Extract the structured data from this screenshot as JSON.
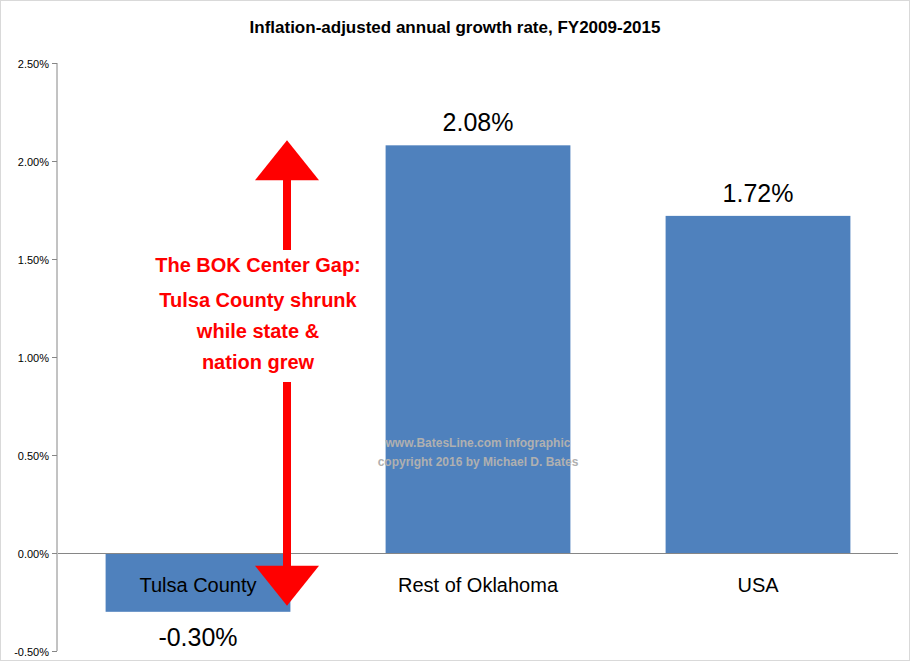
{
  "chart_data": {
    "type": "bar",
    "title": "Inflation-adjusted annual growth rate, FY2009-2015",
    "categories": [
      "Tulsa County",
      "Rest of Oklahoma",
      "USA"
    ],
    "values": [
      -0.3,
      2.08,
      1.72
    ],
    "value_labels": [
      "-0.30%",
      "2.08%",
      "1.72%"
    ],
    "data_labels": true,
    "color": "#4f81bd",
    "ylim": [
      -0.5,
      2.5
    ],
    "yticks": [
      {
        "value": -0.5,
        "label": "-0.50%"
      },
      {
        "value": 0,
        "label": "0.00%"
      },
      {
        "value": 0.5,
        "label": "0.50%"
      },
      {
        "value": 1,
        "label": "1.00%"
      },
      {
        "value": 1.5,
        "label": "1.50%"
      },
      {
        "value": 2,
        "label": "2.00%"
      },
      {
        "value": 2.5,
        "label": "2.50%"
      }
    ],
    "grid": false,
    "annotations": [
      "The BOK Center Gap:",
      "Tulsa County shrunk",
      "while state &",
      "nation grew"
    ],
    "watermark": [
      "www.BatesLine.com infographic",
      "copyright 2016 by Michael D. Bates"
    ]
  }
}
